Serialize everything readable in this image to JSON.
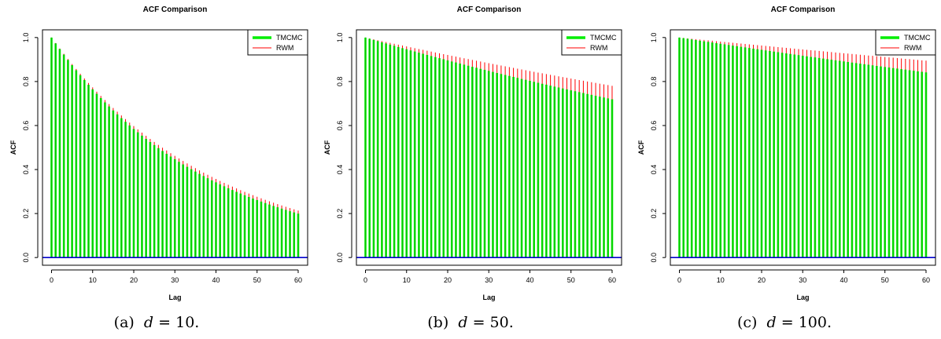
{
  "chart_data": [
    {
      "type": "bar",
      "title": "ACF Comparison",
      "xlabel": "Lag",
      "ylabel": "ACF",
      "xlim": [
        0,
        60
      ],
      "ylim": [
        0,
        1
      ],
      "xticks": [
        "0",
        "10",
        "20",
        "30",
        "40",
        "50",
        "60"
      ],
      "yticks": [
        "0.0",
        "0.2",
        "0.4",
        "0.6",
        "0.8",
        "1.0"
      ],
      "legend_position": "top-right",
      "series": [
        {
          "name": "TMCMC",
          "color": "#00ee00",
          "decay_per_lag": 0.9735,
          "values_note": "acf(lag) = 0.9735^lag, lag 0..60"
        },
        {
          "name": "RWM",
          "color": "#ff0000",
          "decay_per_lag": 0.9746,
          "values_note": "acf(lag) = 0.9746^lag, lag 0..60"
        }
      ],
      "caption_label": "(a)",
      "caption_math": "d",
      "caption_value": "= 10."
    },
    {
      "type": "bar",
      "title": "ACF Comparison",
      "xlabel": "Lag",
      "ylabel": "ACF",
      "xlim": [
        0,
        60
      ],
      "ylim": [
        0,
        1
      ],
      "xticks": [
        "0",
        "10",
        "20",
        "30",
        "40",
        "50",
        "60"
      ],
      "yticks": [
        "0.0",
        "0.2",
        "0.4",
        "0.6",
        "0.8",
        "1.0"
      ],
      "legend_position": "top-right",
      "series": [
        {
          "name": "TMCMC",
          "color": "#00ee00",
          "decay_per_lag": 0.99453
        },
        {
          "name": "RWM",
          "color": "#ff0000",
          "decay_per_lag": 0.99588
        }
      ],
      "caption_label": "(b)",
      "caption_math": "d",
      "caption_value": "= 50."
    },
    {
      "type": "bar",
      "title": "ACF Comparison",
      "xlabel": "Lag",
      "ylabel": "ACF",
      "xlim": [
        0,
        60
      ],
      "ylim": [
        0,
        1
      ],
      "xticks": [
        "0",
        "10",
        "20",
        "30",
        "40",
        "50",
        "60"
      ],
      "yticks": [
        "0.0",
        "0.2",
        "0.4",
        "0.6",
        "0.8",
        "1.0"
      ],
      "legend_position": "top-right",
      "series": [
        {
          "name": "TMCMC",
          "color": "#00ee00",
          "decay_per_lag": 0.99713
        },
        {
          "name": "RWM",
          "color": "#ff0000",
          "decay_per_lag": 0.99815
        }
      ],
      "caption_label": "(c)",
      "caption_math": "d",
      "caption_value": "= 100."
    }
  ]
}
